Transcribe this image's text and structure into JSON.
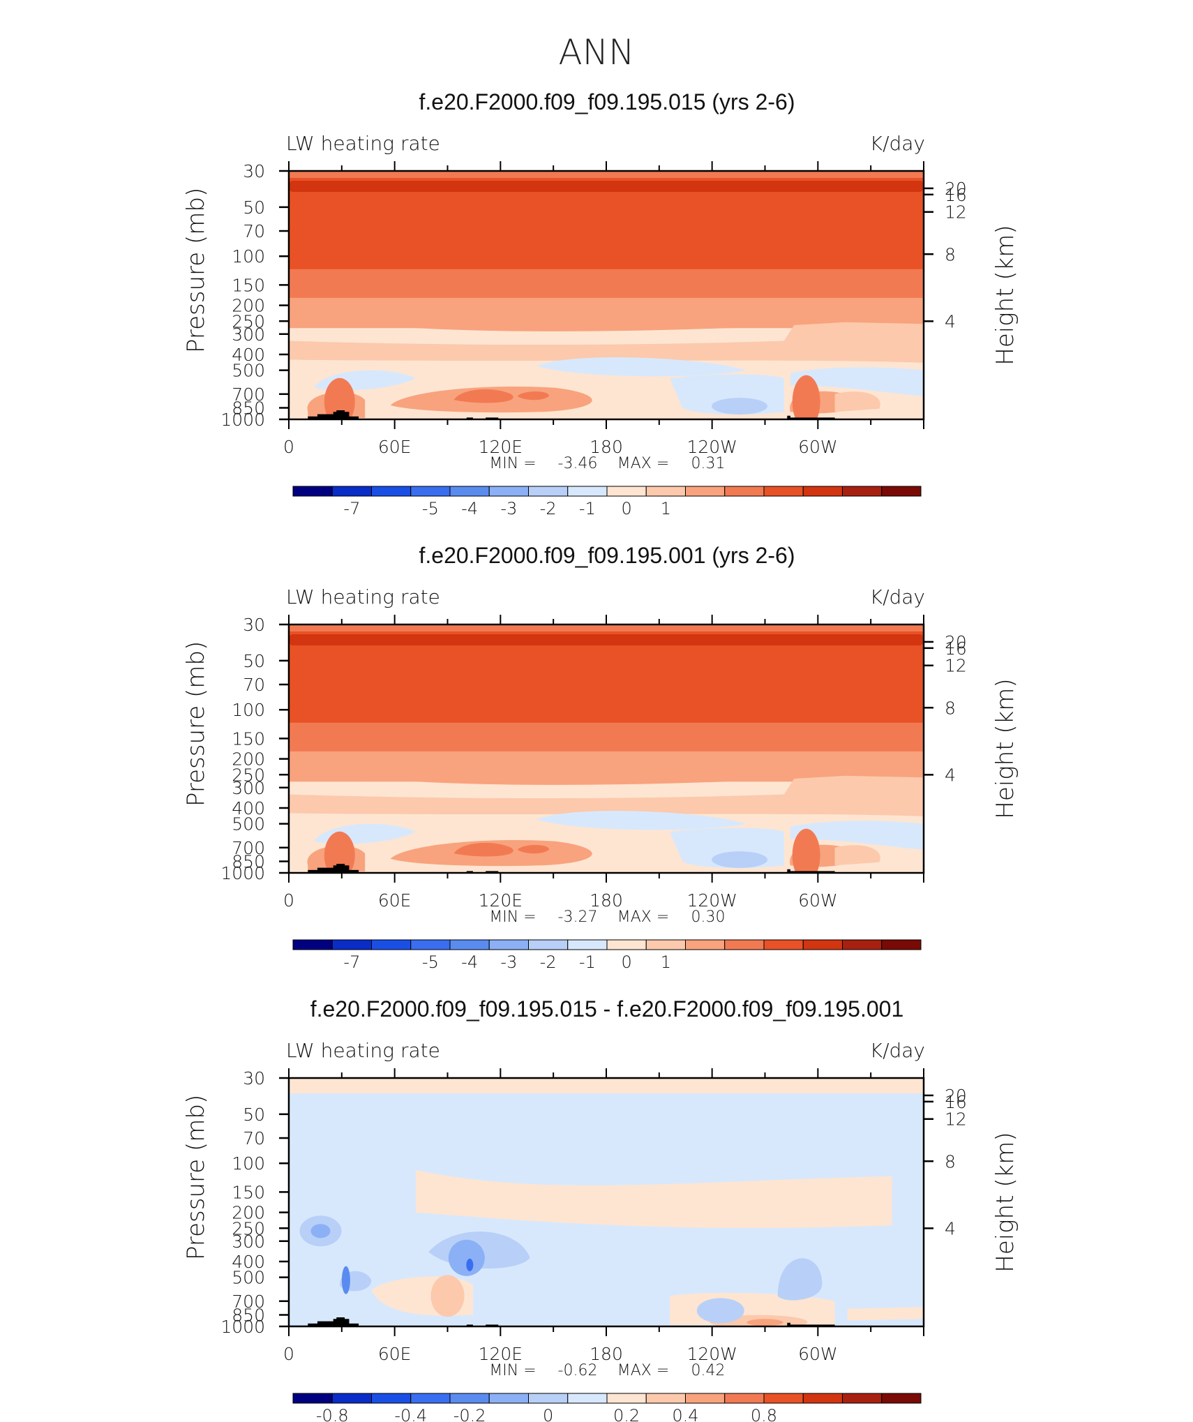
{
  "figure": {
    "title": "ANN"
  },
  "colors": {
    "scale15": [
      "#000080",
      "#0a2dc8",
      "#1a4fe6",
      "#3a6ef0",
      "#5a8cf0",
      "#8bb0f5",
      "#b8d0f8",
      "#d8e8fc",
      "#fde5d2",
      "#fcc9ac",
      "#f8a37d",
      "#f27a52",
      "#e85226",
      "#d23510",
      "#a82010",
      "#7a0a05"
    ]
  },
  "panels": [
    {
      "title": "f.e20.F2000.f09_f09.195.015 (yrs 2-6)",
      "left_label": "LW heating rate",
      "right_label": "K/day",
      "yaxis_label": "Pressure (mb)",
      "y2axis_label": "Height (km)",
      "pressure_ticks": [
        "30",
        "50",
        "70",
        "100",
        "150",
        "200",
        "250",
        "300",
        "400",
        "500",
        "700",
        "850",
        "1000"
      ],
      "height_ticks": [
        "20",
        "16",
        "12",
        "8",
        "4"
      ],
      "lon_ticks": [
        "0",
        "60E",
        "120E",
        "180",
        "120W",
        "60W"
      ],
      "stats": {
        "min_label": "MIN =",
        "min": "-3.46",
        "max_label": "MAX =",
        "max": "0.31"
      },
      "colorbar_labels": [
        "-7",
        "-5",
        "-4",
        "-3",
        "-2",
        "-1",
        "0",
        "1"
      ]
    },
    {
      "title": "f.e20.F2000.f09_f09.195.001 (yrs 2-6)",
      "left_label": "LW heating rate",
      "right_label": "K/day",
      "yaxis_label": "Pressure (mb)",
      "y2axis_label": "Height (km)",
      "pressure_ticks": [
        "30",
        "50",
        "70",
        "100",
        "150",
        "200",
        "250",
        "300",
        "400",
        "500",
        "700",
        "850",
        "1000"
      ],
      "height_ticks": [
        "20",
        "16",
        "12",
        "8",
        "4"
      ],
      "lon_ticks": [
        "0",
        "60E",
        "120E",
        "180",
        "120W",
        "60W"
      ],
      "stats": {
        "min_label": "MIN =",
        "min": "-3.27",
        "max_label": "MAX =",
        "max": "0.30"
      },
      "colorbar_labels": [
        "-7",
        "-5",
        "-4",
        "-3",
        "-2",
        "-1",
        "0",
        "1"
      ]
    },
    {
      "title": "f.e20.F2000.f09_f09.195.015 - f.e20.F2000.f09_f09.195.001",
      "left_label": "LW heating rate",
      "right_label": "K/day",
      "yaxis_label": "Pressure (mb)",
      "y2axis_label": "Height (km)",
      "pressure_ticks": [
        "30",
        "50",
        "70",
        "100",
        "150",
        "200",
        "250",
        "300",
        "400",
        "500",
        "700",
        "850",
        "1000"
      ],
      "height_ticks": [
        "20",
        "16",
        "12",
        "8",
        "4"
      ],
      "lon_ticks": [
        "0",
        "60E",
        "120E",
        "180",
        "120W",
        "60W"
      ],
      "stats": {
        "min_label": "MIN =",
        "min": "-0.62",
        "max_label": "MAX =",
        "max": "0.42"
      },
      "colorbar_labels": [
        "-0.8",
        "-0.4",
        "-0.2",
        "0",
        "0.2",
        "0.4",
        "0.8"
      ]
    }
  ],
  "chart_data": [
    {
      "type": "heatmap",
      "title": "f.e20.F2000.f09_f09.195.015 (yrs 2-6)",
      "variable": "LW heating rate",
      "units": "K/day",
      "xlabel": "",
      "ylabel": "Pressure (mb)",
      "y2label": "Height (km)",
      "x_ticks": [
        "0",
        "60E",
        "120E",
        "180",
        "120W",
        "60W"
      ],
      "y_ticks": [
        30,
        50,
        70,
        100,
        150,
        200,
        250,
        300,
        400,
        500,
        700,
        850,
        1000
      ],
      "y2_ticks": [
        20,
        16,
        12,
        8,
        4
      ],
      "y_scale": "log",
      "ylim": [
        1000,
        30
      ],
      "min": -3.46,
      "max": 0.31,
      "colorbar": [
        -7,
        -5,
        -4,
        -3,
        -2,
        -1,
        0,
        1
      ]
    },
    {
      "type": "heatmap",
      "title": "f.e20.F2000.f09_f09.195.001 (yrs 2-6)",
      "variable": "LW heating rate",
      "units": "K/day",
      "xlabel": "",
      "ylabel": "Pressure (mb)",
      "y2label": "Height (km)",
      "x_ticks": [
        "0",
        "60E",
        "120E",
        "180",
        "120W",
        "60W"
      ],
      "y_ticks": [
        30,
        50,
        70,
        100,
        150,
        200,
        250,
        300,
        400,
        500,
        700,
        850,
        1000
      ],
      "y2_ticks": [
        20,
        16,
        12,
        8,
        4
      ],
      "y_scale": "log",
      "ylim": [
        1000,
        30
      ],
      "min": -3.27,
      "max": 0.3,
      "colorbar": [
        -7,
        -5,
        -4,
        -3,
        -2,
        -1,
        0,
        1
      ]
    },
    {
      "type": "heatmap",
      "title": "f.e20.F2000.f09_f09.195.015 - f.e20.F2000.f09_f09.195.001",
      "variable": "LW heating rate",
      "units": "K/day",
      "xlabel": "",
      "ylabel": "Pressure (mb)",
      "y2label": "Height (km)",
      "x_ticks": [
        "0",
        "60E",
        "120E",
        "180",
        "120W",
        "60W"
      ],
      "y_ticks": [
        30,
        50,
        70,
        100,
        150,
        200,
        250,
        300,
        400,
        500,
        700,
        850,
        1000
      ],
      "y2_ticks": [
        20,
        16,
        12,
        8,
        4
      ],
      "y_scale": "log",
      "ylim": [
        1000,
        30
      ],
      "min": -0.62,
      "max": 0.42,
      "colorbar": [
        -0.8,
        -0.4,
        -0.2,
        0,
        0.2,
        0.4,
        0.8
      ]
    }
  ]
}
